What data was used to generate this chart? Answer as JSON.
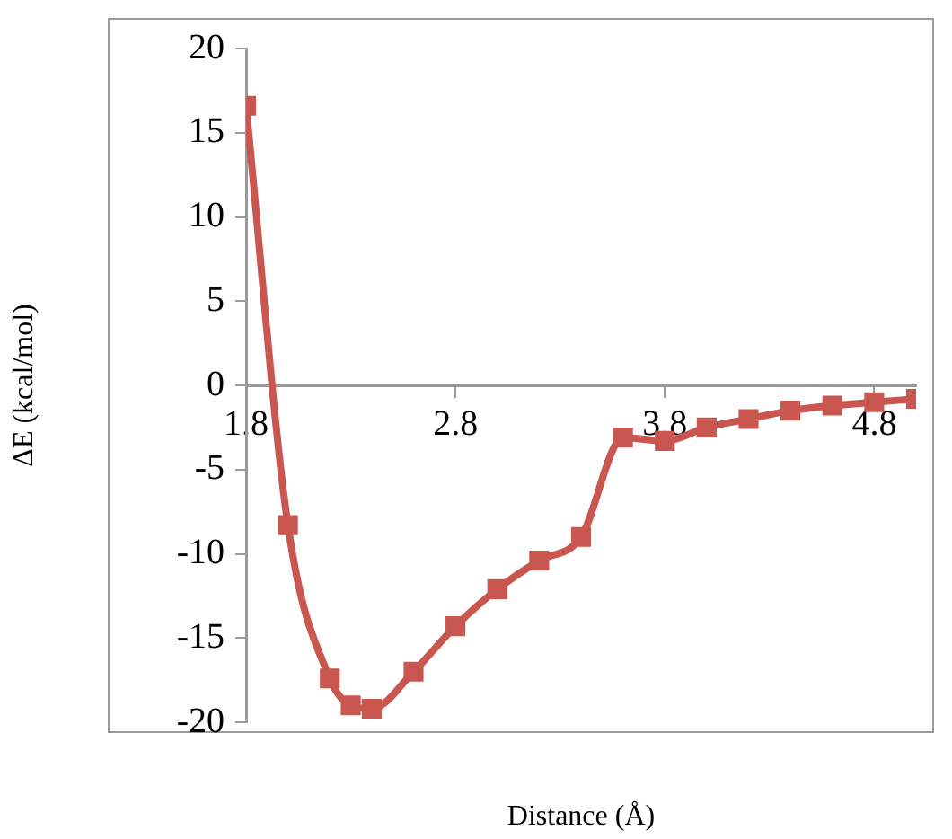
{
  "chart_data": {
    "type": "line",
    "xlabel": "Distance (Å)",
    "ylabel": "ΔE (kcal/mol)",
    "x": [
      1.8,
      2.0,
      2.2,
      2.3,
      2.4,
      2.6,
      2.8,
      3.0,
      3.2,
      3.4,
      3.6,
      3.8,
      4.0,
      4.2,
      4.4,
      4.6,
      4.8,
      5.0
    ],
    "series": [
      {
        "color": "#c9574f",
        "values": [
          16.6,
          -8.3,
          -17.4,
          -19.0,
          -19.2,
          -17.0,
          -14.3,
          -12.1,
          -10.4,
          -9.0,
          -3.1,
          -3.3,
          -2.5,
          -2.0,
          -1.5,
          -1.2,
          -1.0,
          -0.8
        ]
      }
    ],
    "xlim": [
      1.8,
      5.0
    ],
    "xticks": [
      1.8,
      2.8,
      3.8,
      4.8
    ],
    "ylim": [
      -20,
      20
    ],
    "yticks": [
      -20,
      -15,
      -10,
      -5,
      0,
      5,
      10,
      15,
      20
    ],
    "grid": false,
    "legend": false,
    "marker": "square",
    "line_style": "solid"
  }
}
